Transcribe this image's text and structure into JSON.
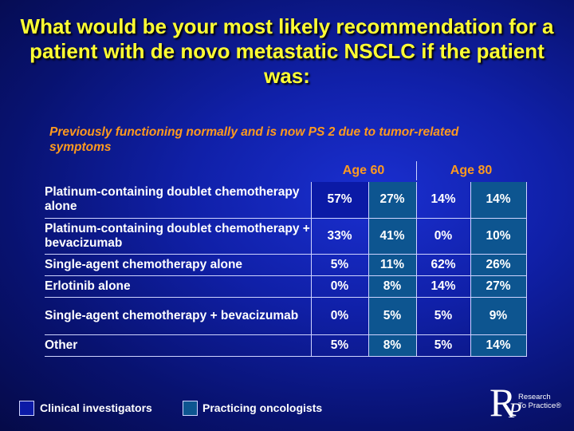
{
  "title": "What would be your most likely recommendation for a patient with de novo metastatic NSCLC if the patient was:",
  "subtitle": "Previously functioning normally and is now PS 2 due to tumor-related symptoms",
  "group_headers": [
    "Age 60",
    "Age 80"
  ],
  "rows": [
    {
      "label": "Platinum-containing doublet chemotherapy alone",
      "values": [
        "57%",
        "27%",
        "14%",
        "14%"
      ]
    },
    {
      "label": "Platinum-containing doublet chemotherapy + bevacizumab",
      "values": [
        "33%",
        "41%",
        "0%",
        "10%"
      ]
    },
    {
      "label": "Single-agent chemotherapy alone",
      "values": [
        "5%",
        "11%",
        "62%",
        "26%"
      ]
    },
    {
      "label": "Erlotinib alone",
      "values": [
        "0%",
        "8%",
        "14%",
        "27%"
      ]
    },
    {
      "label": "Single-agent chemotherapy + bevacizumab",
      "values": [
        "0%",
        "5%",
        "5%",
        "9%"
      ]
    },
    {
      "label": "Other",
      "values": [
        "5%",
        "8%",
        "5%",
        "14%"
      ]
    }
  ],
  "legend": [
    {
      "label": "Clinical investigators",
      "color": "#0b1aa6"
    },
    {
      "label": "Practicing oncologists",
      "color": "#0d5590"
    }
  ],
  "logo": {
    "letters": "R",
    "sub_letter": "P",
    "text_line1": "Research",
    "text_line2": "To Practice®"
  },
  "colors": {
    "title": "#ffff33",
    "accent": "#ff9a1e",
    "background": "#1020a8"
  }
}
